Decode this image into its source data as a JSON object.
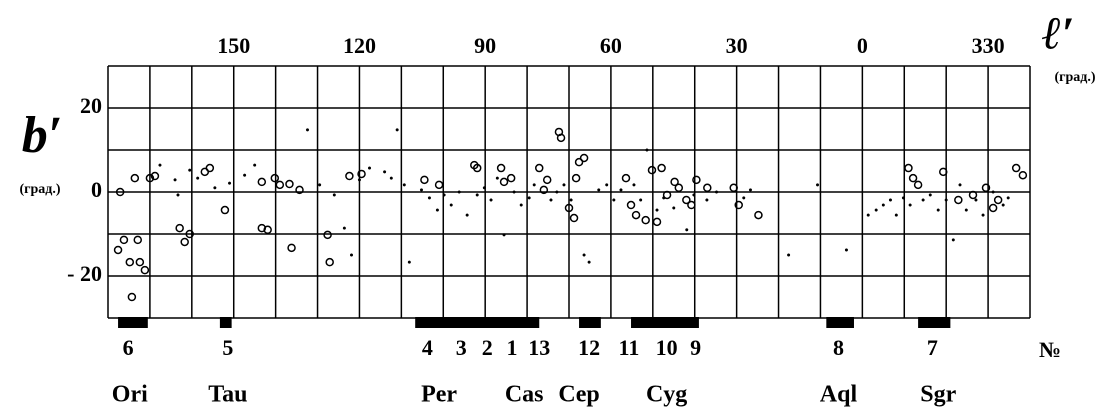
{
  "chart_data": {
    "type": "scatter",
    "x_label": "ℓ′",
    "x_unit": "(град.)",
    "y_label": "b′",
    "y_unit": "(град.)",
    "xlim": [
      180,
      -40
    ],
    "ylim": [
      -30,
      30
    ],
    "xticks": [
      150,
      120,
      90,
      60,
      30,
      0,
      {
        "value": -30,
        "label": "330"
      }
    ],
    "yticks": [
      20,
      0,
      {
        "value": -20,
        "label": "- 20"
      }
    ],
    "xgrid": [
      180,
      170,
      160,
      150,
      140,
      130,
      120,
      110,
      100,
      90,
      80,
      70,
      60,
      50,
      40,
      30,
      20,
      10,
      0,
      -10,
      -20,
      -30,
      -40
    ],
    "ygrid": [
      30,
      20,
      10,
      0,
      -10,
      -20,
      -30
    ],
    "series": [
      {
        "marker": "circle",
        "color": "#000",
        "x": [
          177.6,
          176.2,
          174.8,
          172.4,
          172.9,
          171.2,
          174.3,
          177.1,
          173.6,
          170,
          168.8,
          162.9,
          161.7,
          160.5,
          156.9,
          155.7,
          152.1,
          143.3,
          141.9,
          143.3,
          140.2,
          139,
          136.7,
          136.2,
          134.3,
          127.6,
          127.1,
          122.4,
          119.5,
          104.5,
          101,
          92.6,
          91.9,
          86.2,
          85.5,
          83.8,
          77.1,
          76,
          75.2,
          72.4,
          71.9,
          70,
          68.8,
          67.6,
          66.4,
          68.3,
          56.4,
          55.2,
          54,
          51.7,
          49,
          50.2,
          47.9,
          46.6,
          44.8,
          43.8,
          42,
          40.8,
          39.6,
          37,
          30.7,
          29.5,
          24.8,
          -11,
          -12.1,
          -13.3,
          -19.3,
          -22.9,
          -26.4,
          -29.5,
          -31.2,
          -32.4,
          -36.7,
          -38.3
        ],
        "y": [
          -13.8,
          -11.4,
          -16.7,
          -16.7,
          -11.4,
          -18.6,
          -25,
          0,
          3.3,
          3.3,
          3.8,
          -8.6,
          -11.9,
          -10,
          4.8,
          5.7,
          -4.3,
          -8.6,
          -9,
          2.4,
          3.3,
          1.7,
          1.9,
          -13.3,
          0.5,
          -10.2,
          -16.7,
          3.8,
          4.3,
          2.9,
          1.7,
          6.4,
          5.7,
          5.7,
          2.4,
          3.3,
          5.7,
          0.5,
          2.9,
          14.3,
          12.9,
          -3.8,
          -6.2,
          7.1,
          8.1,
          3.3,
          3.3,
          -3.1,
          -5.5,
          -6.7,
          -7.1,
          5.2,
          5.7,
          -0.7,
          2.4,
          1,
          -1.9,
          -3.1,
          2.9,
          1,
          1,
          -3.1,
          -5.5,
          5.7,
          3.3,
          1.7,
          4.8,
          -1.9,
          -0.7,
          1,
          -3.8,
          -1.9,
          5.7,
          4
        ]
      },
      {
        "marker": "dot",
        "color": "#000",
        "x": [
          167.6,
          164,
          163.3,
          160.5,
          158.6,
          154.5,
          151,
          147.4,
          145,
          132.4,
          129.5,
          126,
          123.6,
          121.9,
          120,
          117.6,
          114,
          112.4,
          111,
          109.3,
          108.1,
          105.2,
          103.3,
          101.4,
          99.8,
          98.1,
          96.2,
          94.3,
          91.9,
          90.2,
          88.6,
          87.1,
          85.5,
          83.1,
          81.4,
          79.5,
          78.3,
          74.3,
          72.9,
          71.2,
          69.5,
          66.4,
          65.2,
          62.9,
          61,
          59.3,
          57.6,
          54.5,
          52.9,
          51.4,
          49,
          47.4,
          45,
          41.9,
          40.2,
          37.1,
          34.8,
          28.3,
          26.7,
          17.6,
          10.7,
          3.8,
          -1.4,
          -3.3,
          -5,
          -6.7,
          -8.1,
          -9.8,
          -11.4,
          -14.5,
          -16.2,
          -18.1,
          -20,
          -21.7,
          -23.3,
          -24.8,
          -27.1,
          -28.8,
          -31.2,
          -33.6,
          -34.8
        ],
        "y": [
          6.4,
          2.9,
          -0.7,
          5.2,
          3.3,
          1,
          2.1,
          4,
          6.4,
          14.8,
          1.7,
          -0.7,
          -8.6,
          -15,
          2.9,
          5.7,
          4.8,
          3.3,
          14.8,
          1.7,
          -16.7,
          0.5,
          -1.4,
          -4.3,
          -0.7,
          -3.1,
          0,
          -5.5,
          -0.7,
          1,
          -1.9,
          3.3,
          -10.2,
          0,
          -3.1,
          -1.4,
          1.7,
          -1.9,
          0,
          1.7,
          -1.9,
          -15,
          -16.7,
          0.5,
          1.7,
          -1.9,
          0.5,
          1.7,
          -1.9,
          10,
          -4.3,
          -1.4,
          -3.8,
          -9,
          -0.7,
          -1.9,
          0,
          -1.4,
          0.5,
          -15,
          1.7,
          -13.8,
          -5.5,
          -4.3,
          -3.1,
          -1.9,
          -5.5,
          -1.4,
          -3.1,
          -1.9,
          -0.7,
          -4.3,
          -1.9,
          -11.4,
          1.7,
          -4.3,
          -1.9,
          -5.5,
          0,
          -3.1,
          -1.4
        ]
      }
    ],
    "bars": [
      [
        177.6,
        170.5
      ],
      [
        153.3,
        150.5
      ],
      [
        106.7,
        77.1
      ],
      [
        67.6,
        62.4
      ],
      [
        55.2,
        39
      ],
      [
        8.6,
        2
      ],
      [
        -13.3,
        -21
      ]
    ],
    "number_header": "№",
    "objects": [
      {
        "label": "6",
        "l": 175.2
      },
      {
        "label": "5",
        "l": 151.4
      },
      {
        "label": "4",
        "l": 103.8
      },
      {
        "label": "3",
        "l": 95.7
      },
      {
        "label": "2",
        "l": 89.5
      },
      {
        "label": "1",
        "l": 83.6
      },
      {
        "label": "13",
        "l": 77.1
      },
      {
        "label": "12",
        "l": 65.2
      },
      {
        "label": "11",
        "l": 55.7
      },
      {
        "label": "10",
        "l": 46.7
      },
      {
        "label": "9",
        "l": 39.8
      },
      {
        "label": "8",
        "l": 5.7
      },
      {
        "label": "7",
        "l": -16.7
      }
    ],
    "constellations": [
      {
        "name": "Ori",
        "l": 174.8
      },
      {
        "name": "Tau",
        "l": 151.4
      },
      {
        "name": "Per",
        "l": 101
      },
      {
        "name": "Cas",
        "l": 80.7
      },
      {
        "name": "Cep",
        "l": 67.6
      },
      {
        "name": "Cyg",
        "l": 46.7
      },
      {
        "name": "Aql",
        "l": 5.7
      },
      {
        "name": "Sgr",
        "l": -18.1
      }
    ]
  }
}
